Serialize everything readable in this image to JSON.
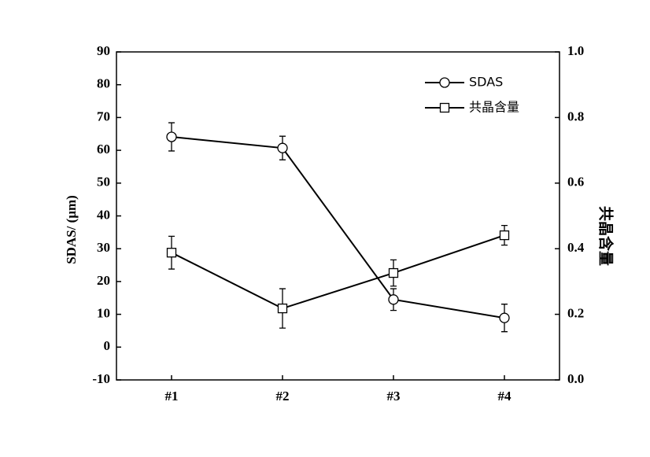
{
  "chart_data": {
    "type": "line",
    "categories": [
      "#1",
      "#2",
      "#3",
      "#4"
    ],
    "ylabel": "SDAS/ (μm)",
    "y2label": "共晶含量",
    "ylim": [
      -10,
      90
    ],
    "yticks": [
      -10,
      0,
      10,
      20,
      30,
      40,
      50,
      60,
      70,
      80,
      90
    ],
    "y2lim": [
      0,
      1
    ],
    "y2ticks": [
      {
        "value": 0,
        "label": "0.0"
      },
      0.2,
      0.4,
      0.6,
      0.8,
      {
        "value": 1,
        "label": "1.0"
      }
    ],
    "legend": "upper right",
    "series": [
      {
        "name": "SDAS",
        "color": "#000000",
        "marker": "circle",
        "values": [
          64.1,
          60.7,
          14.5,
          8.9
        ],
        "errors": [
          4.3,
          3.6,
          3.3,
          4.2
        ]
      },
      {
        "name": "共晶含量",
        "color": "#000000",
        "marker": "square",
        "axis": "y2",
        "values": [
          0.388,
          0.218,
          0.326,
          0.441
        ],
        "errors": [
          0.05,
          0.06,
          0.04,
          0.03
        ]
      }
    ]
  }
}
